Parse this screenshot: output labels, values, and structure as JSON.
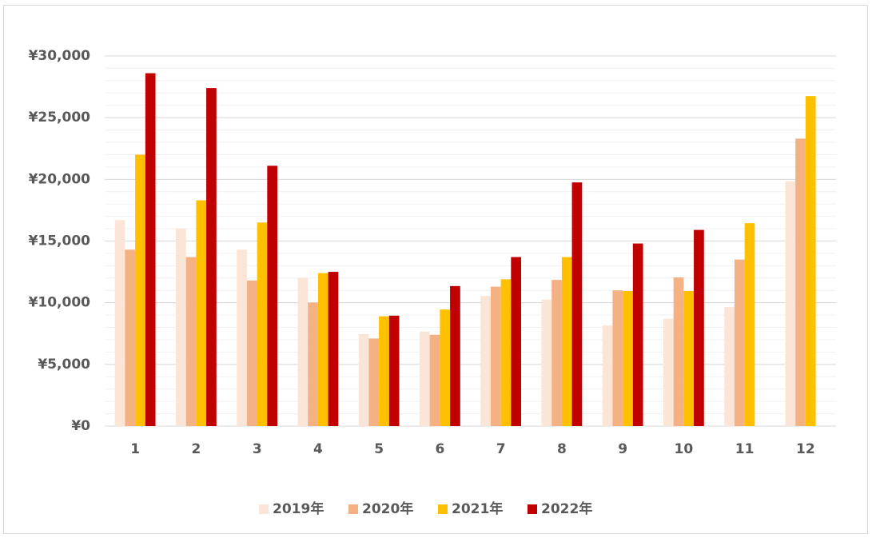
{
  "chart_data": {
    "type": "bar",
    "categories": [
      "1",
      "2",
      "3",
      "4",
      "5",
      "6",
      "7",
      "8",
      "9",
      "10",
      "11",
      "12"
    ],
    "series": [
      {
        "name": "2019年",
        "color": "#fbe5d6",
        "values": [
          16700,
          16000,
          14300,
          12000,
          7450,
          7650,
          10550,
          10250,
          8150,
          8700,
          9650,
          19850
        ]
      },
      {
        "name": "2020年",
        "color": "#f4b183",
        "values": [
          14300,
          13700,
          11800,
          10000,
          7100,
          7400,
          11300,
          11850,
          11000,
          12050,
          13500,
          23300
        ]
      },
      {
        "name": "2021年",
        "color": "#ffc000",
        "values": [
          22000,
          18300,
          16500,
          12400,
          8900,
          9450,
          11900,
          13700,
          10950,
          10950,
          16450,
          26750
        ]
      },
      {
        "name": "2022年",
        "color": "#c00000",
        "values": [
          28600,
          27400,
          21100,
          12500,
          8950,
          11350,
          13700,
          19750,
          14800,
          15900,
          null,
          null
        ]
      }
    ],
    "ylim": [
      0,
      30000
    ],
    "yticks": [
      {
        "value": 0,
        "label": "¥0"
      },
      {
        "value": 5000,
        "label": "¥5,000"
      },
      {
        "value": 10000,
        "label": "¥10,000"
      },
      {
        "value": 15000,
        "label": "¥15,000"
      },
      {
        "value": 20000,
        "label": "¥20,000"
      },
      {
        "value": 25000,
        "label": "¥25,000"
      },
      {
        "value": 30000,
        "label": "¥30,000"
      }
    ],
    "grid": true,
    "minor_grid_step": 1000,
    "legend": "bottom"
  }
}
